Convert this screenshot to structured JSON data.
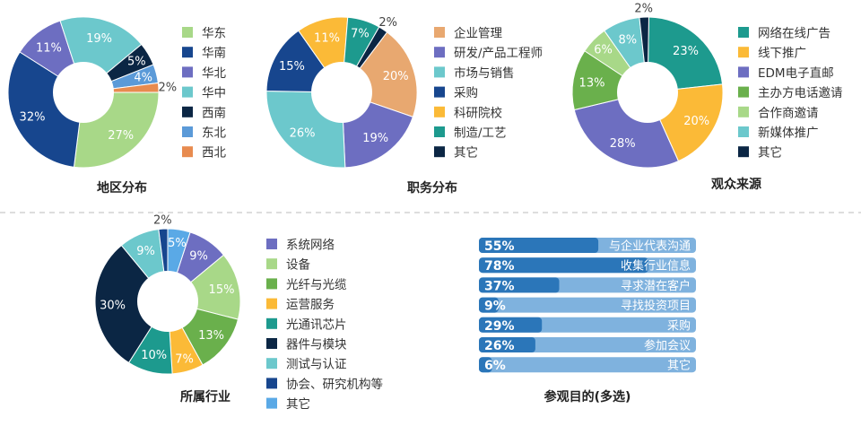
{
  "chart_data": [
    {
      "type": "pie",
      "title": "地区分布",
      "series": [
        {
          "name": "华东",
          "value": 27,
          "color": "#a8d888"
        },
        {
          "name": "华南",
          "value": 32,
          "color": "#17468e"
        },
        {
          "name": "华北",
          "value": 11,
          "color": "#6d6ec1"
        },
        {
          "name": "华中",
          "value": 19,
          "color": "#6cc8cc"
        },
        {
          "name": "西南",
          "value": 5,
          "color": "#0b2644"
        },
        {
          "name": "东北",
          "value": 4,
          "color": "#5b9ad8"
        },
        {
          "name": "西北",
          "value": 2,
          "color": "#e88b4f"
        }
      ]
    },
    {
      "type": "pie",
      "title": "职务分布",
      "series": [
        {
          "name": "企业管理",
          "value": 20,
          "color": "#e8a870"
        },
        {
          "name": "研发/产品工程师",
          "value": 19,
          "color": "#6d6ec1"
        },
        {
          "name": "市场与销售",
          "value": 26,
          "color": "#6cc8cc"
        },
        {
          "name": "采购",
          "value": 15,
          "color": "#17468e"
        },
        {
          "name": "科研院校",
          "value": 11,
          "color": "#fbba37"
        },
        {
          "name": "制造/工艺",
          "value": 7,
          "color": "#1d9a8e"
        },
        {
          "name": "其它",
          "value": 2,
          "color": "#0b2644"
        }
      ]
    },
    {
      "type": "pie",
      "title": "观众来源",
      "series": [
        {
          "name": "网络在线广告",
          "value": 23,
          "color": "#1d9a8e"
        },
        {
          "name": "线下推广",
          "value": 20,
          "color": "#fbba37"
        },
        {
          "name": "EDM电子直邮",
          "value": 28,
          "color": "#6d6ec1"
        },
        {
          "name": "主办方电话邀请",
          "value": 13,
          "color": "#6ab04c"
        },
        {
          "name": "合作商邀请",
          "value": 6,
          "color": "#a8d888"
        },
        {
          "name": "新媒体推广",
          "value": 8,
          "color": "#6cc8cc"
        },
        {
          "name": "其它",
          "value": 2,
          "color": "#0b2644"
        }
      ]
    },
    {
      "type": "pie",
      "title": "所属行业",
      "series": [
        {
          "name": "系统网络",
          "value": 9,
          "color": "#6d6ec1"
        },
        {
          "name": "设备",
          "value": 15,
          "color": "#a8d888"
        },
        {
          "name": "光纤与光缆",
          "value": 13,
          "color": "#6ab04c"
        },
        {
          "name": "运营服务",
          "value": 7,
          "color": "#fbba37"
        },
        {
          "name": "光通讯芯片",
          "value": 10,
          "color": "#1d9a8e"
        },
        {
          "name": "器件与模块",
          "value": 30,
          "color": "#0b2644"
        },
        {
          "name": "测试与认证",
          "value": 9,
          "color": "#6cc8cc"
        },
        {
          "name": "协会、研究机构等",
          "value": 2,
          "color": "#17468e"
        },
        {
          "name": "其它",
          "value": 5,
          "color": "#5aa9e6"
        }
      ]
    },
    {
      "type": "bar",
      "orientation": "horizontal",
      "title": "参观目的(多选)",
      "xlim": [
        0,
        100
      ],
      "bar_color": "#2b76b9",
      "track_color": "#7fb2de",
      "items": [
        {
          "label": "与企业代表沟通",
          "value": 55
        },
        {
          "label": "收集行业信息",
          "value": 78
        },
        {
          "label": "寻求潜在客户",
          "value": 37
        },
        {
          "label": "寻找投资项目",
          "value": 9
        },
        {
          "label": "采购",
          "value": 29
        },
        {
          "label": "参加会议",
          "value": 26
        },
        {
          "label": "其它",
          "value": 6
        }
      ]
    }
  ]
}
